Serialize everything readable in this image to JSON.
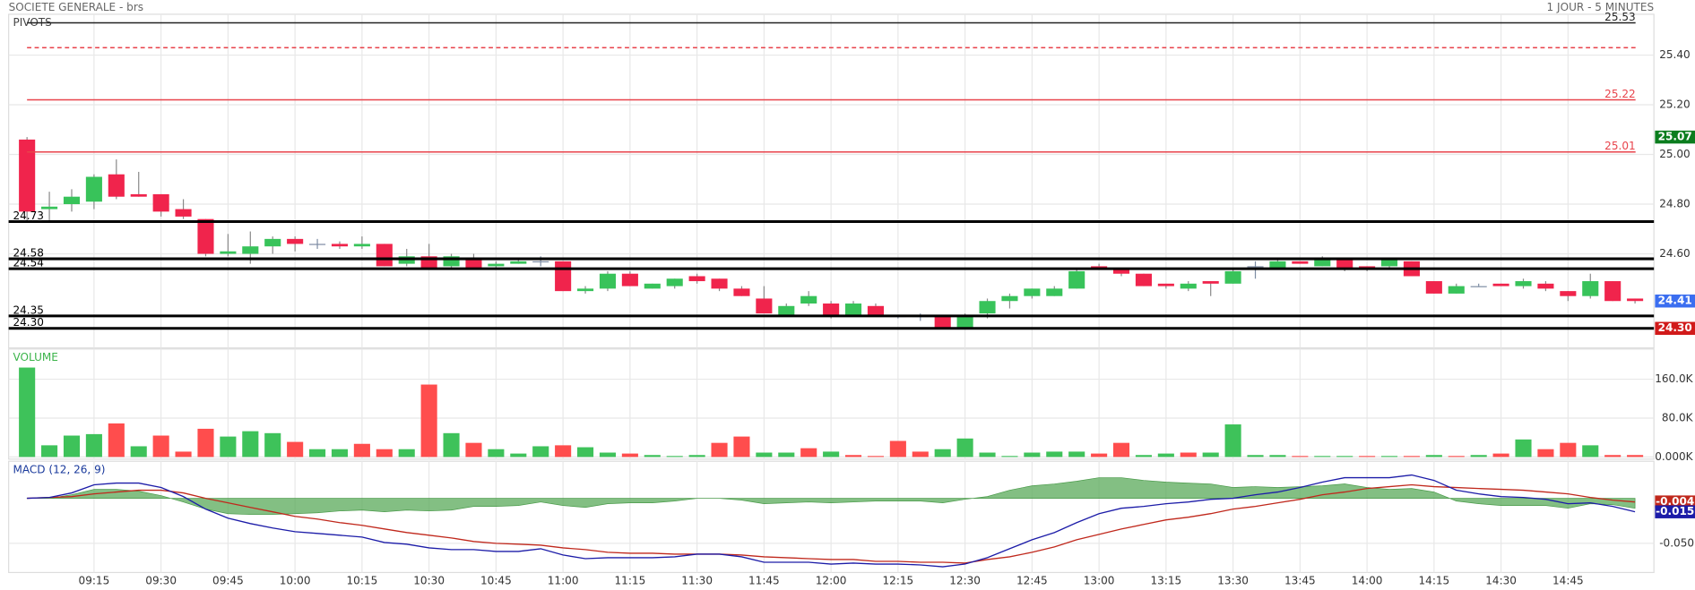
{
  "header": {
    "title": "SOCIETE GENERALE - brs",
    "timeframe": "1 JOUR - 5 MINUTES"
  },
  "chart_data": [
    {
      "type": "candlestick",
      "title": "PIVOTS",
      "title_color": "#444444",
      "open": [
        25.06,
        24.78,
        24.8,
        24.81,
        24.92,
        24.84,
        24.84,
        24.78,
        24.74,
        24.6,
        24.6,
        24.63,
        24.66,
        24.64,
        24.64,
        24.63,
        24.64,
        24.56,
        24.59,
        24.55,
        24.58,
        24.55,
        24.56,
        24.57,
        24.57,
        24.45,
        24.46,
        24.52,
        24.46,
        24.47,
        24.51,
        24.5,
        24.46,
        24.42,
        24.35,
        24.4,
        24.4,
        24.35,
        24.39,
        24.35,
        24.35,
        24.35,
        24.3,
        24.36,
        24.41,
        24.43,
        24.43,
        24.46,
        24.55,
        24.54,
        24.52,
        24.48,
        24.46,
        24.49,
        24.48,
        24.55,
        24.54,
        24.57,
        24.55,
        24.58,
        24.55,
        24.55,
        24.57,
        24.49,
        24.44,
        24.47,
        24.48,
        24.47,
        24.48,
        24.45,
        24.43,
        24.49,
        24.42
      ],
      "high": [
        25.07,
        24.85,
        24.86,
        24.92,
        24.98,
        24.93,
        24.84,
        24.82,
        24.74,
        24.68,
        24.69,
        24.67,
        24.67,
        24.66,
        24.65,
        24.67,
        24.64,
        24.62,
        24.64,
        24.6,
        24.6,
        24.57,
        24.58,
        24.59,
        24.57,
        24.47,
        24.53,
        24.53,
        24.48,
        24.5,
        24.52,
        24.5,
        24.47,
        24.47,
        24.4,
        24.45,
        24.41,
        24.41,
        24.4,
        24.35,
        24.36,
        24.35,
        24.36,
        24.42,
        24.44,
        24.46,
        24.47,
        24.54,
        24.56,
        24.54,
        24.52,
        24.48,
        24.49,
        24.49,
        24.54,
        24.57,
        24.58,
        24.57,
        24.59,
        24.58,
        24.55,
        24.58,
        24.57,
        24.49,
        24.48,
        24.48,
        24.48,
        24.5,
        24.49,
        24.45,
        24.52,
        24.49,
        24.42
      ],
      "low": [
        24.73,
        24.73,
        24.77,
        24.78,
        24.82,
        24.83,
        24.75,
        24.74,
        24.59,
        24.59,
        24.56,
        24.6,
        24.61,
        24.62,
        24.62,
        24.62,
        24.55,
        24.55,
        24.54,
        24.54,
        24.54,
        24.54,
        24.56,
        24.55,
        24.45,
        24.44,
        24.45,
        24.47,
        24.46,
        24.46,
        24.48,
        24.45,
        24.43,
        24.36,
        24.35,
        24.39,
        24.34,
        24.35,
        24.35,
        24.34,
        24.33,
        24.3,
        24.3,
        24.34,
        24.38,
        24.42,
        24.43,
        24.46,
        24.54,
        24.51,
        24.47,
        24.46,
        24.45,
        24.43,
        24.48,
        24.5,
        24.54,
        24.56,
        24.55,
        24.53,
        24.53,
        24.54,
        24.51,
        24.44,
        24.44,
        24.47,
        24.47,
        24.46,
        24.45,
        24.41,
        24.42,
        24.41,
        24.4
      ],
      "close": [
        24.77,
        24.79,
        24.83,
        24.91,
        24.83,
        24.83,
        24.77,
        24.75,
        24.6,
        24.61,
        24.63,
        24.66,
        24.64,
        24.64,
        24.63,
        24.64,
        24.55,
        24.59,
        24.54,
        24.59,
        24.54,
        24.56,
        24.57,
        24.57,
        24.45,
        24.46,
        24.52,
        24.47,
        24.48,
        24.5,
        24.49,
        24.46,
        24.43,
        24.36,
        24.39,
        24.43,
        24.35,
        24.4,
        24.35,
        24.35,
        24.35,
        24.3,
        24.35,
        24.41,
        24.43,
        24.46,
        24.46,
        24.53,
        24.54,
        24.52,
        24.47,
        24.47,
        24.48,
        24.48,
        24.53,
        24.55,
        24.57,
        24.56,
        24.58,
        24.54,
        24.54,
        24.58,
        24.51,
        24.44,
        24.47,
        24.47,
        24.47,
        24.49,
        24.46,
        24.43,
        24.49,
        24.41,
        24.41
      ],
      "up_color": "#38c35a",
      "down_color": "#f0244c",
      "doji_color": "#7d8ca3",
      "ylim": [
        24.23,
        25.56
      ],
      "yticks": [
        {
          "value": 24.6,
          "label": "24.60"
        },
        {
          "value": 24.8,
          "label": "24.80"
        },
        {
          "value": 25,
          "label": "25.00"
        },
        {
          "value": 25.2,
          "label": "25.20"
        },
        {
          "value": 25.4,
          "label": "25.40"
        }
      ],
      "grid": true,
      "pivots": [
        {
          "value": 25.53,
          "label": "25.53",
          "color": "#222222",
          "style": "thin"
        },
        {
          "value": 25.43,
          "color": "#e8434b",
          "style": "dashed"
        },
        {
          "value": 25.22,
          "label": "25.22",
          "color": "#e8434b",
          "style": "thin"
        },
        {
          "value": 25.01,
          "label": "25.01",
          "color": "#e8434b",
          "style": "solid"
        },
        {
          "value": 24.73,
          "label": "24.73",
          "color": "#000000",
          "style": "thick"
        },
        {
          "value": 24.58,
          "label": "24.58",
          "color": "#000000",
          "style": "thick"
        },
        {
          "value": 24.54,
          "label": "24.54",
          "color": "#000000",
          "style": "thick"
        },
        {
          "value": 24.35,
          "label": "24.35",
          "color": "#000000",
          "style": "thick"
        },
        {
          "value": 24.3,
          "label": "24.30",
          "color": "#000000",
          "style": "thick"
        }
      ],
      "price_markers": [
        {
          "value": 25.07,
          "label": "25.07",
          "color": "#0b7d1e"
        },
        {
          "value": 24.41,
          "label": "24.41",
          "color": "#3b6ef0"
        },
        {
          "value": 24.3,
          "label": "24.30",
          "color": "#d11a1a"
        }
      ]
    },
    {
      "type": "bar",
      "title": "VOLUME",
      "title_color": "#3cb44b",
      "values": [
        184000,
        24000,
        44000,
        47000,
        69000,
        22000,
        44000,
        11000,
        58000,
        42000,
        53000,
        49000,
        31000,
        16000,
        16000,
        27000,
        16000,
        16000,
        149000,
        49000,
        29000,
        16000,
        7000,
        22000,
        24000,
        20000,
        9000,
        7000,
        4000,
        2000,
        4000,
        29000,
        42000,
        9000,
        9000,
        18000,
        11000,
        4000,
        2000,
        33000,
        11000,
        16000,
        38000,
        9000,
        2000,
        9000,
        11000,
        11000,
        7000,
        29000,
        4000,
        7000,
        9000,
        9000,
        67000,
        4000,
        4000,
        2000,
        2000,
        2000,
        2000,
        2000,
        2000,
        4000,
        2000,
        4000,
        7000,
        36000,
        16000,
        29000,
        24000,
        4000,
        4000
      ],
      "colors": [
        "#3ec25a",
        "#3ec25a",
        "#3ec25a",
        "#3ec25a",
        "#ff4d4d",
        "#3ec25a",
        "#ff4d4d",
        "#ff4d4d",
        "#ff4d4d",
        "#3ec25a",
        "#3ec25a",
        "#3ec25a",
        "#ff4d4d",
        "#3ec25a",
        "#3ec25a",
        "#ff4d4d",
        "#ff4d4d",
        "#3ec25a",
        "#ff4d4d",
        "#3ec25a",
        "#ff4d4d",
        "#3ec25a",
        "#3ec25a",
        "#3ec25a",
        "#ff4d4d",
        "#3ec25a",
        "#3ec25a",
        "#ff4d4d",
        "#3ec25a",
        "#3ec25a",
        "#3ec25a",
        "#ff4d4d",
        "#ff4d4d",
        "#3ec25a",
        "#3ec25a",
        "#ff4d4d",
        "#3ec25a",
        "#ff4d4d",
        "#ff4d4d",
        "#ff4d4d",
        "#ff4d4d",
        "#3ec25a",
        "#3ec25a",
        "#3ec25a",
        "#3ec25a",
        "#3ec25a",
        "#3ec25a",
        "#3ec25a",
        "#ff4d4d",
        "#ff4d4d",
        "#3ec25a",
        "#3ec25a",
        "#ff4d4d",
        "#3ec25a",
        "#3ec25a",
        "#3ec25a",
        "#3ec25a",
        "#ff4d4d",
        "#3ec25a",
        "#3ec25a",
        "#ff4d4d",
        "#3ec25a",
        "#ff4d4d",
        "#3ec25a",
        "#ff4d4d",
        "#3ec25a",
        "#ff4d4d",
        "#3ec25a",
        "#ff4d4d",
        "#ff4d4d",
        "#3ec25a",
        "#ff4d4d",
        "#ff4d4d"
      ],
      "ylim": [
        0,
        220000
      ],
      "yticks": [
        {
          "value": 0,
          "label": "0.000K"
        },
        {
          "value": 80000,
          "label": "80.0K"
        },
        {
          "value": 160000,
          "label": "160.0K"
        }
      ],
      "grid": true
    },
    {
      "type": "line",
      "title": "MACD (12, 26, 9)",
      "title_color": "#1a3a9c",
      "categories": [
        null,
        null,
        null,
        "09:15",
        null,
        null,
        "09:30",
        null,
        null,
        "09:45",
        null,
        null,
        "10:00",
        null,
        null,
        "10:15",
        null,
        null,
        "10:30",
        null,
        null,
        "10:45",
        null,
        null,
        "11:00",
        null,
        null,
        "11:15",
        null,
        null,
        "11:30",
        null,
        null,
        "11:45",
        null,
        null,
        "12:00",
        null,
        null,
        "12:15",
        null,
        null,
        "12:30",
        null,
        null,
        "12:45",
        null,
        null,
        "13:00",
        null,
        null,
        "13:15",
        null,
        null,
        "13:30",
        null,
        null,
        "13:45",
        null,
        null,
        "14:00",
        null,
        null,
        "14:15",
        null,
        null,
        "14:30",
        null,
        null,
        "14:45",
        null,
        null,
        null
      ],
      "series": [
        {
          "type": "area",
          "color": "#5aaa5a",
          "values": [
            0,
            0,
            0.004,
            0.01,
            0.01,
            0.008,
            0.003,
            -0.004,
            -0.012,
            -0.017,
            -0.018,
            -0.018,
            -0.017,
            -0.016,
            -0.014,
            -0.013,
            -0.015,
            -0.013,
            -0.014,
            -0.013,
            -0.009,
            -0.009,
            -0.008,
            -0.004,
            -0.008,
            -0.01,
            -0.006,
            -0.005,
            -0.005,
            -0.003,
            0,
            0,
            -0.002,
            -0.006,
            -0.005,
            -0.004,
            -0.005,
            -0.004,
            -0.003,
            -0.003,
            -0.003,
            -0.005,
            -0.001,
            0.002,
            0.009,
            0.014,
            0.016,
            0.019,
            0.023,
            0.023,
            0.02,
            0.018,
            0.017,
            0.016,
            0.012,
            0.013,
            0.012,
            0.013,
            0.014,
            0.016,
            0.012,
            0.01,
            0.011,
            0.007,
            -0.003,
            -0.006,
            -0.008,
            -0.008,
            -0.008,
            -0.011,
            -0.006,
            -0.007,
            -0.011
          ]
        },
        {
          "type": "line",
          "color": "#c0281c",
          "values": [
            0,
            0.001,
            0.002,
            0.005,
            0.007,
            0.009,
            0.009,
            0.006,
            0,
            -0.005,
            -0.01,
            -0.015,
            -0.02,
            -0.023,
            -0.027,
            -0.03,
            -0.034,
            -0.038,
            -0.041,
            -0.044,
            -0.048,
            -0.05,
            -0.051,
            -0.052,
            -0.055,
            -0.057,
            -0.06,
            -0.061,
            -0.061,
            -0.062,
            -0.062,
            -0.062,
            -0.063,
            -0.065,
            -0.066,
            -0.067,
            -0.068,
            -0.068,
            -0.07,
            -0.07,
            -0.071,
            -0.071,
            -0.072,
            -0.068,
            -0.065,
            -0.06,
            -0.054,
            -0.046,
            -0.04,
            -0.034,
            -0.029,
            -0.024,
            -0.021,
            -0.017,
            -0.012,
            -0.009,
            -0.005,
            -0.001,
            0.004,
            0.007,
            0.011,
            0.013,
            0.015,
            0.013,
            0.012,
            0.011,
            0.01,
            0.009,
            0.007,
            0.005,
            0.001,
            -0.002,
            -0.004
          ]
        },
        {
          "type": "line",
          "color": "#1c1ca8",
          "values": [
            0,
            0.001,
            0.006,
            0.015,
            0.017,
            0.017,
            0.012,
            0.002,
            -0.012,
            -0.022,
            -0.028,
            -0.033,
            -0.037,
            -0.039,
            -0.041,
            -0.043,
            -0.049,
            -0.051,
            -0.055,
            -0.057,
            -0.057,
            -0.059,
            -0.059,
            -0.056,
            -0.063,
            -0.067,
            -0.066,
            -0.066,
            -0.066,
            -0.065,
            -0.062,
            -0.062,
            -0.065,
            -0.071,
            -0.071,
            -0.071,
            -0.073,
            -0.072,
            -0.073,
            -0.073,
            -0.074,
            -0.076,
            -0.073,
            -0.066,
            -0.056,
            -0.046,
            -0.038,
            -0.027,
            -0.017,
            -0.011,
            -0.009,
            -0.006,
            -0.004,
            -0.001,
            0,
            0.004,
            0.007,
            0.012,
            0.018,
            0.023,
            0.023,
            0.023,
            0.026,
            0.02,
            0.009,
            0.005,
            0.002,
            0.001,
            -0.001,
            -0.006,
            -0.005,
            -0.009,
            -0.015
          ]
        }
      ],
      "ylim": [
        -0.08,
        0.04
      ],
      "yticks": [
        {
          "value": -0.05,
          "label": "-0.050"
        }
      ],
      "grid": true
    }
  ]
}
